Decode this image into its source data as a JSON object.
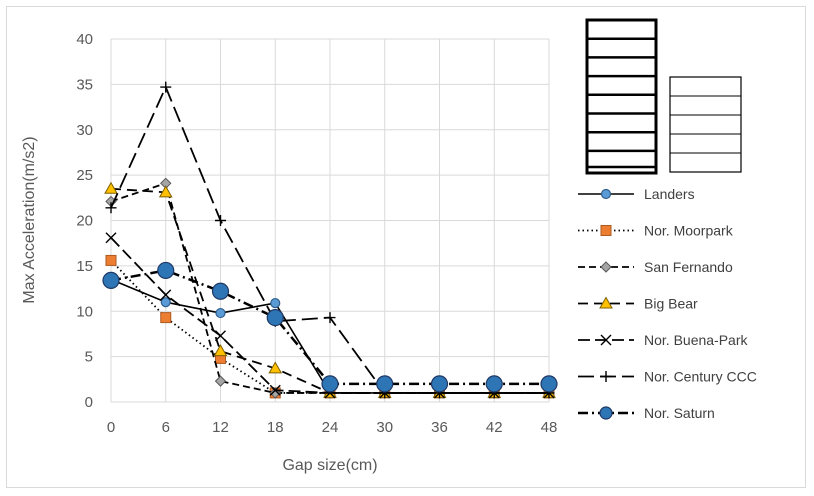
{
  "chart_data": {
    "type": "line",
    "xlabel": "Gap size(cm)",
    "ylabel": "Max Acceleration(m/s2)",
    "x": [
      0,
      6,
      12,
      18,
      24,
      30,
      36,
      42,
      48
    ],
    "x_ticks": [
      "0",
      "6",
      "12",
      "18",
      "24",
      "30",
      "36",
      "42",
      "48"
    ],
    "ylim": [
      0,
      40
    ],
    "y_ticks": [
      "0",
      "5",
      "10",
      "15",
      "20",
      "25",
      "30",
      "35",
      "40"
    ],
    "grid": "both",
    "legend_position": "right",
    "series": [
      {
        "name": "Landers",
        "x": [
          0,
          6,
          12,
          18,
          24,
          30,
          36,
          42,
          48
        ],
        "values": [
          13.5,
          11.0,
          9.8,
          10.9,
          1.0,
          1.0,
          1.0,
          1.0,
          1.0
        ],
        "color": "#5b9bd5"
      },
      {
        "name": "Nor. Moorpark",
        "x": [
          0,
          6,
          12,
          18,
          24,
          30,
          36,
          42,
          48
        ],
        "values": [
          15.6,
          9.3,
          4.8,
          1.0,
          1.0,
          1.0,
          1.0,
          1.0,
          1.0
        ],
        "color": "#ed7d31"
      },
      {
        "name": "San Fernando",
        "x": [
          0,
          6,
          12,
          18,
          24,
          30,
          36,
          42,
          48
        ],
        "values": [
          22.1,
          24.1,
          2.3,
          1.0,
          1.0,
          1.0,
          1.0,
          1.0,
          1.0
        ],
        "color": "#a5a5a5"
      },
      {
        "name": "Big Bear",
        "x": [
          0,
          6,
          12,
          18,
          24,
          30,
          36,
          42,
          48
        ],
        "values": [
          23.5,
          23.1,
          5.6,
          3.7,
          1.0,
          1.0,
          1.0,
          1.0,
          1.0
        ],
        "color": "#ffc000"
      },
      {
        "name": "Nor. Buena-Park",
        "x": [
          0,
          6,
          12,
          18,
          24,
          30,
          36,
          42,
          48
        ],
        "values": [
          18.1,
          11.8,
          7.3,
          1.3,
          1.0,
          1.0,
          1.0,
          1.0,
          1.0
        ],
        "color": "#000000"
      },
      {
        "name": "Nor. Century CCC",
        "x": [
          0,
          6,
          12,
          18,
          24,
          30,
          36,
          42,
          48
        ],
        "values": [
          21.4,
          34.7,
          20.0,
          8.9,
          9.3,
          1.0,
          1.0,
          1.0,
          1.0
        ],
        "color": "#000000"
      },
      {
        "name": "Nor. Saturn",
        "x": [
          0,
          6,
          12,
          18,
          24,
          30,
          36,
          42,
          48
        ],
        "values": [
          13.4,
          14.5,
          12.2,
          9.3,
          2.0,
          2.0,
          2.0,
          2.0,
          2.0
        ],
        "color": "#1f4e79"
      }
    ]
  }
}
